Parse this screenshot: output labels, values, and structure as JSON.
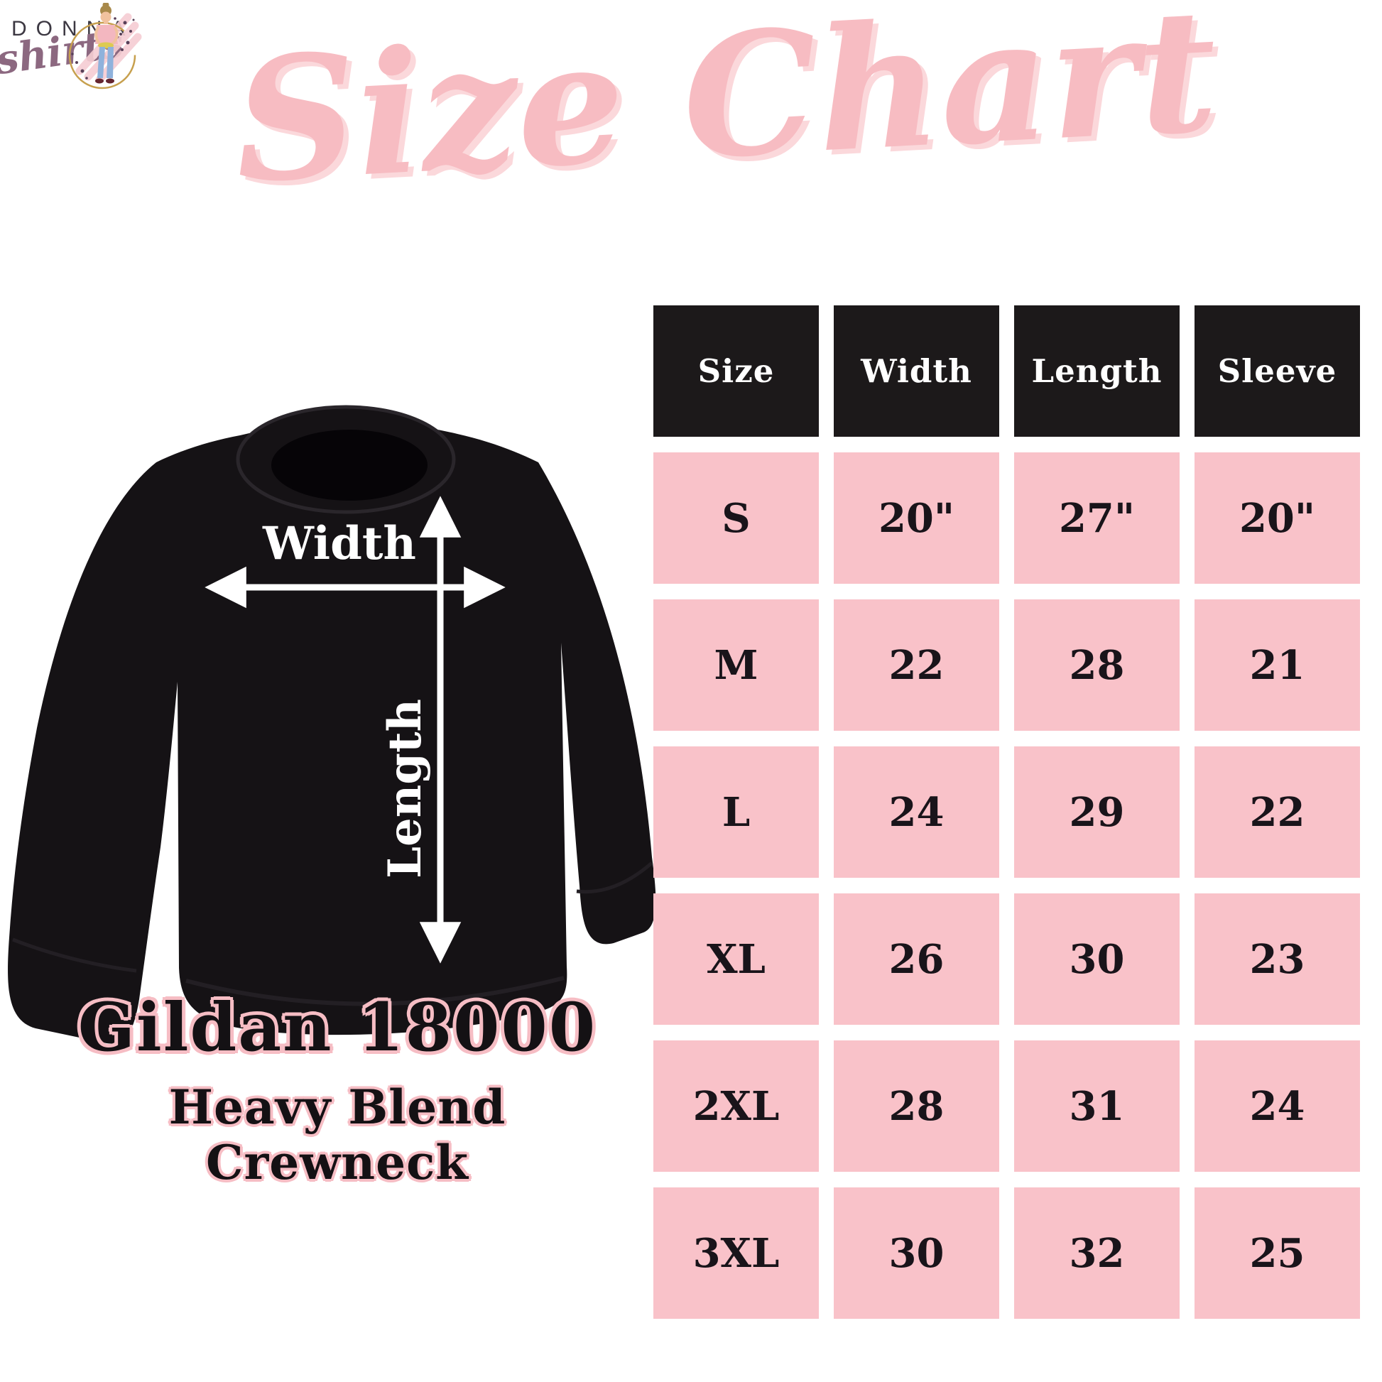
{
  "logo": {
    "brand_top": "DONNA",
    "brand_script": "shirts"
  },
  "title": "Size Chart",
  "diagram": {
    "width_label": "Width",
    "length_label": "Length"
  },
  "product": {
    "line1": "Gildan 18000",
    "line2": "Heavy Blend Crewneck"
  },
  "chart_data": {
    "type": "table",
    "title": "Size Chart",
    "columns": [
      "Size",
      "Width",
      "Length",
      "Sleeve"
    ],
    "rows": [
      [
        "S",
        "20\"",
        "27\"",
        "20\""
      ],
      [
        "M",
        "22",
        "28",
        "21"
      ],
      [
        "L",
        "24",
        "29",
        "22"
      ],
      [
        "XL",
        "26",
        "30",
        "23"
      ],
      [
        "2XL",
        "28",
        "31",
        "24"
      ],
      [
        "3XL",
        "30",
        "32",
        "25"
      ]
    ],
    "units": "inches",
    "header_style": "black cells, white text",
    "row_style": "pink cells, black text"
  },
  "colors": {
    "title_pink": "#f7bcc2",
    "cell_pink": "#f9c2c9",
    "header_black": "#1c191a",
    "outline_pink": "#f6bdc4",
    "brand_script_mauve": "#8c6880"
  }
}
